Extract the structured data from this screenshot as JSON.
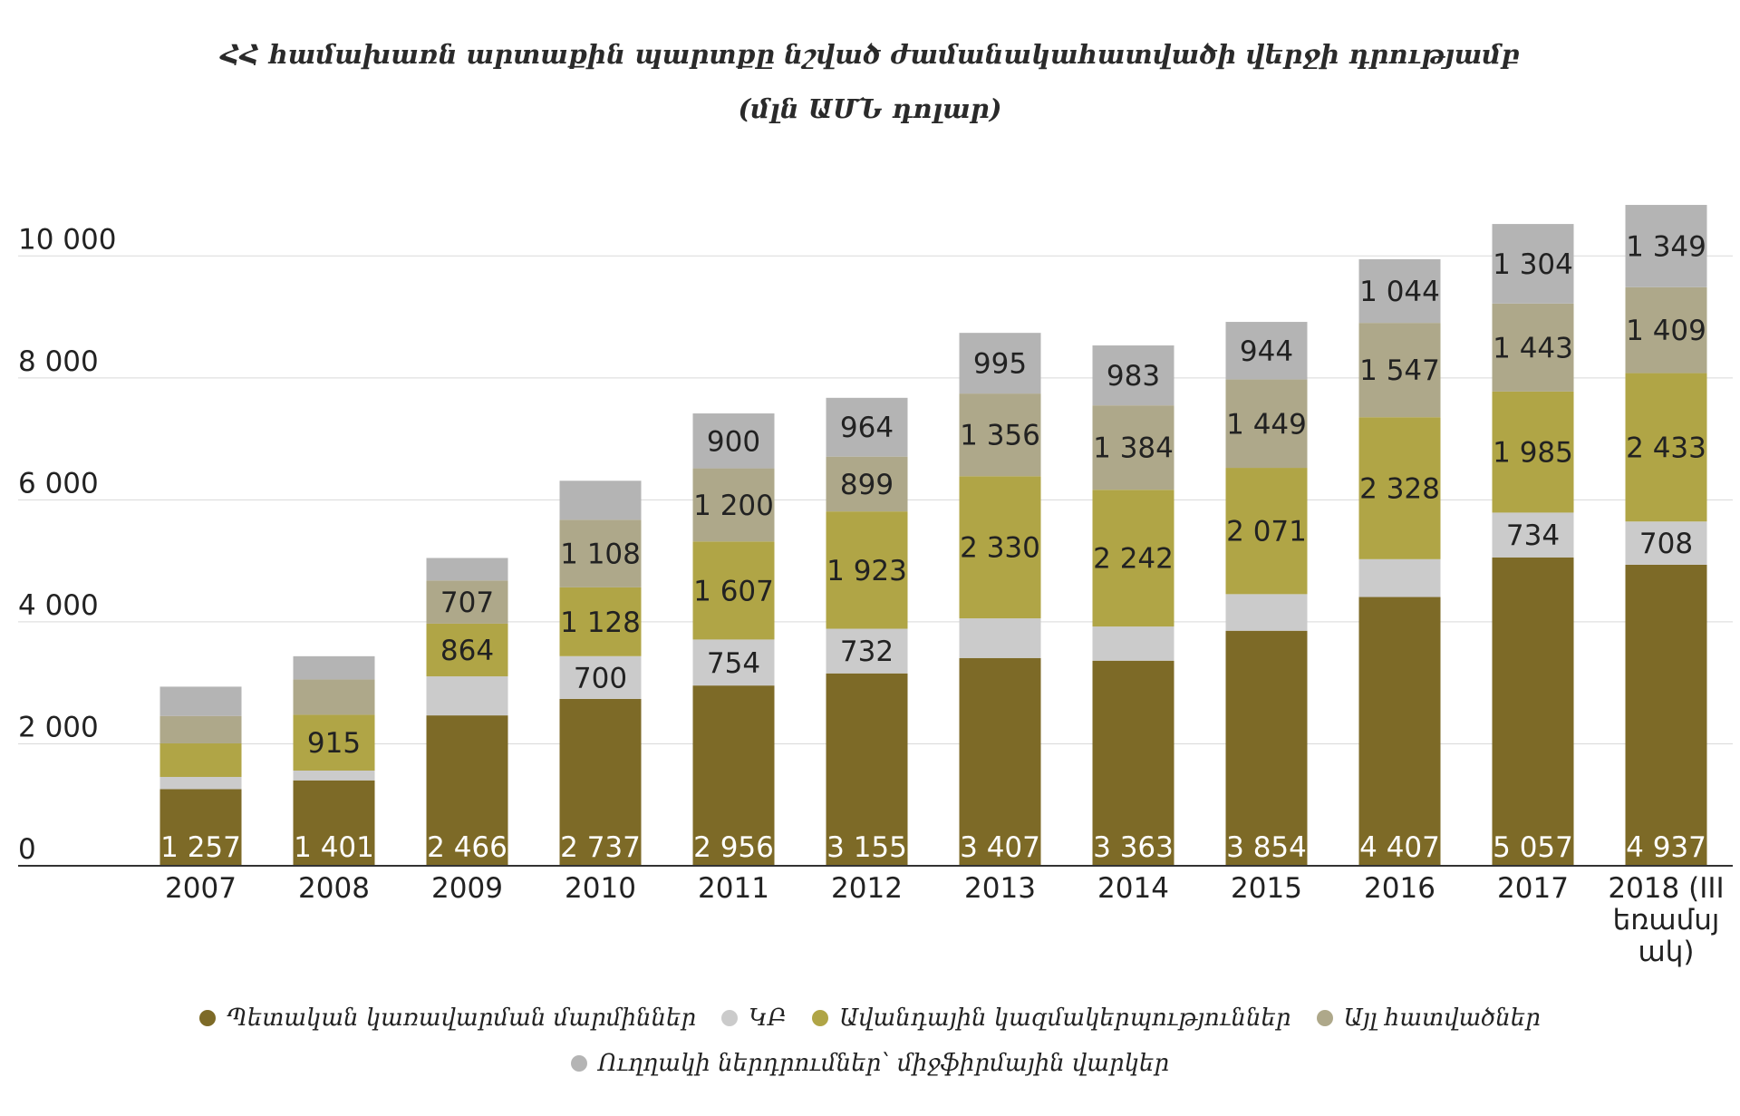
{
  "chart_data": {
    "type": "bar",
    "stacked": true,
    "title": "ՀՀ համախառն արտաքին պարտքը նշված ժամանակահատվածի վերջի դրությամբ",
    "subtitle": "(մլն ԱՄՆ դոլար)",
    "categories": [
      "2007",
      "2008",
      "2009",
      "2010",
      "2011",
      "2012",
      "2013",
      "2014",
      "2015",
      "2016",
      "2017",
      "2018 (III եռամսյակ)"
    ],
    "category_label_lines": [
      [
        "2007"
      ],
      [
        "2008"
      ],
      [
        "2009"
      ],
      [
        "2010"
      ],
      [
        "2011"
      ],
      [
        "2012"
      ],
      [
        "2013"
      ],
      [
        "2014"
      ],
      [
        "2015"
      ],
      [
        "2016"
      ],
      [
        "2017"
      ],
      [
        "2018 (III",
        "եռամսյ",
        "ակ)"
      ]
    ],
    "ylim": [
      0,
      11000
    ],
    "yticks": [
      0,
      2000,
      4000,
      6000,
      8000,
      10000
    ],
    "ytick_labels": [
      "0",
      "2 000",
      "4 000",
      "6 000",
      "8 000",
      "10 000"
    ],
    "grid": true,
    "legend_position": "bottom",
    "series": [
      {
        "name": "Պետական կառավարման մարմիններ",
        "color": "#7d6a27",
        "values": [
          1257,
          1401,
          2466,
          2737,
          2956,
          3155,
          3407,
          3363,
          3854,
          4407,
          5057,
          4937
        ],
        "labels": [
          "1 257",
          "1 401",
          "2 466",
          "2 737",
          "2 956",
          "3 155",
          "3 407",
          "3 363",
          "3 854",
          "4 407",
          "5 057",
          "4 937"
        ]
      },
      {
        "name": "ԿԲ",
        "color": "#cbcbcb",
        "values": [
          200,
          160,
          640,
          700,
          754,
          732,
          650,
          560,
          600,
          620,
          734,
          708
        ],
        "labels": [
          "",
          "",
          "",
          "700",
          "754",
          "732",
          "",
          "",
          "",
          "",
          "734",
          "708"
        ]
      },
      {
        "name": "Ավանդային կազմակերպություններ",
        "color": "#b0a546",
        "values": [
          550,
          915,
          864,
          1128,
          1607,
          1923,
          2330,
          2242,
          2071,
          2328,
          1985,
          2433
        ],
        "labels": [
          "",
          "915",
          "864",
          "1 128",
          "1 607",
          "1 923",
          "2 330",
          "2 242",
          "2 071",
          "2 328",
          "1 985",
          "2 433"
        ]
      },
      {
        "name": "Այլ հատվածներ",
        "color": "#aea88a",
        "values": [
          450,
          580,
          707,
          1108,
          1200,
          899,
          1356,
          1384,
          1449,
          1547,
          1443,
          1409
        ],
        "labels": [
          "",
          "",
          "707",
          "1 108",
          "1 200",
          "899",
          "1 356",
          "1 384",
          "1 449",
          "1 547",
          "1 443",
          "1 409"
        ]
      },
      {
        "name": "Ուղղակի ներդրումներ՝ միջֆիրմային վարկեր",
        "color": "#b4b4b4",
        "values": [
          480,
          380,
          370,
          640,
          900,
          964,
          995,
          983,
          944,
          1044,
          1304,
          1349
        ],
        "labels": [
          "",
          "",
          "",
          "",
          "900",
          "964",
          "995",
          "983",
          "944",
          "1 044",
          "1 304",
          "1 349"
        ]
      }
    ]
  }
}
